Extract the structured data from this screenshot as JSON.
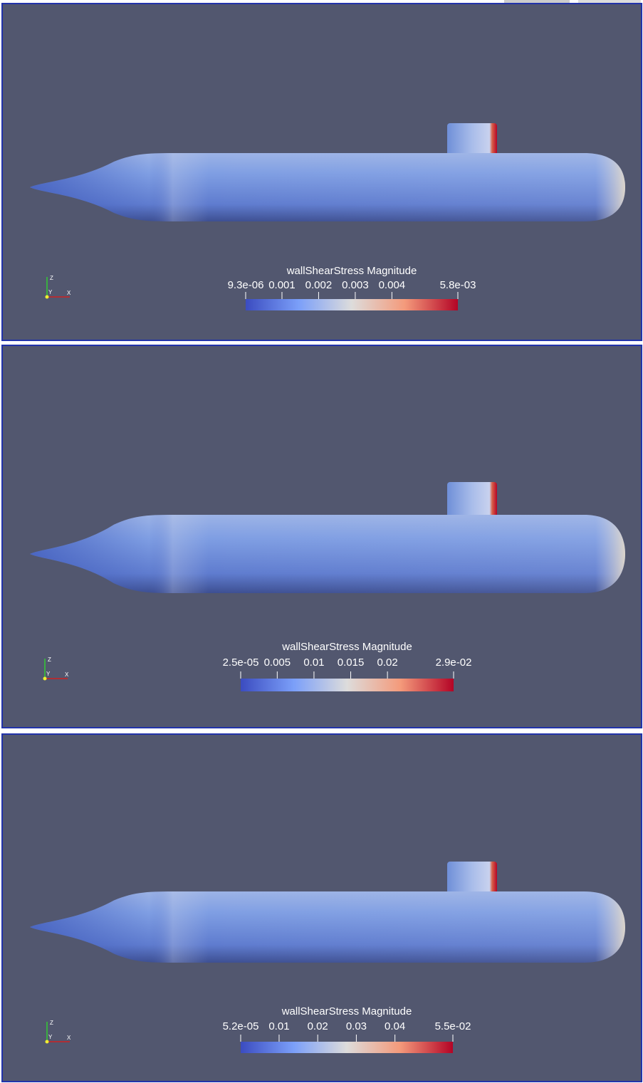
{
  "panels": [
    {
      "colorbar": {
        "title": "wallShearStress Magnitude",
        "ticks": [
          {
            "value": 9.3e-06,
            "label": "9.3e-06"
          },
          0.001,
          0.002,
          0.003,
          0.004,
          {
            "value": 0.0058,
            "label": "5.8e-03"
          }
        ]
      },
      "triad": {
        "z": "Z",
        "y": "Y",
        "x": "X"
      }
    },
    {
      "colorbar": {
        "title": "wallShearStress Magnitude",
        "ticks": [
          {
            "value": 2.5e-05,
            "label": "2.5e-05"
          },
          0.005,
          0.01,
          0.015,
          0.02,
          {
            "value": 0.029,
            "label": "2.9e-02"
          }
        ]
      },
      "triad": {
        "z": "Z",
        "y": "Y",
        "x": "X"
      }
    },
    {
      "colorbar": {
        "title": "wallShearStress Magnitude",
        "ticks": [
          {
            "value": 5.2e-05,
            "label": "5.2e-05"
          },
          0.01,
          0.02,
          0.03,
          0.04,
          {
            "value": 0.055,
            "label": "5.5e-02"
          }
        ]
      },
      "triad": {
        "z": "Z",
        "y": "Y",
        "x": "X"
      }
    }
  ]
}
